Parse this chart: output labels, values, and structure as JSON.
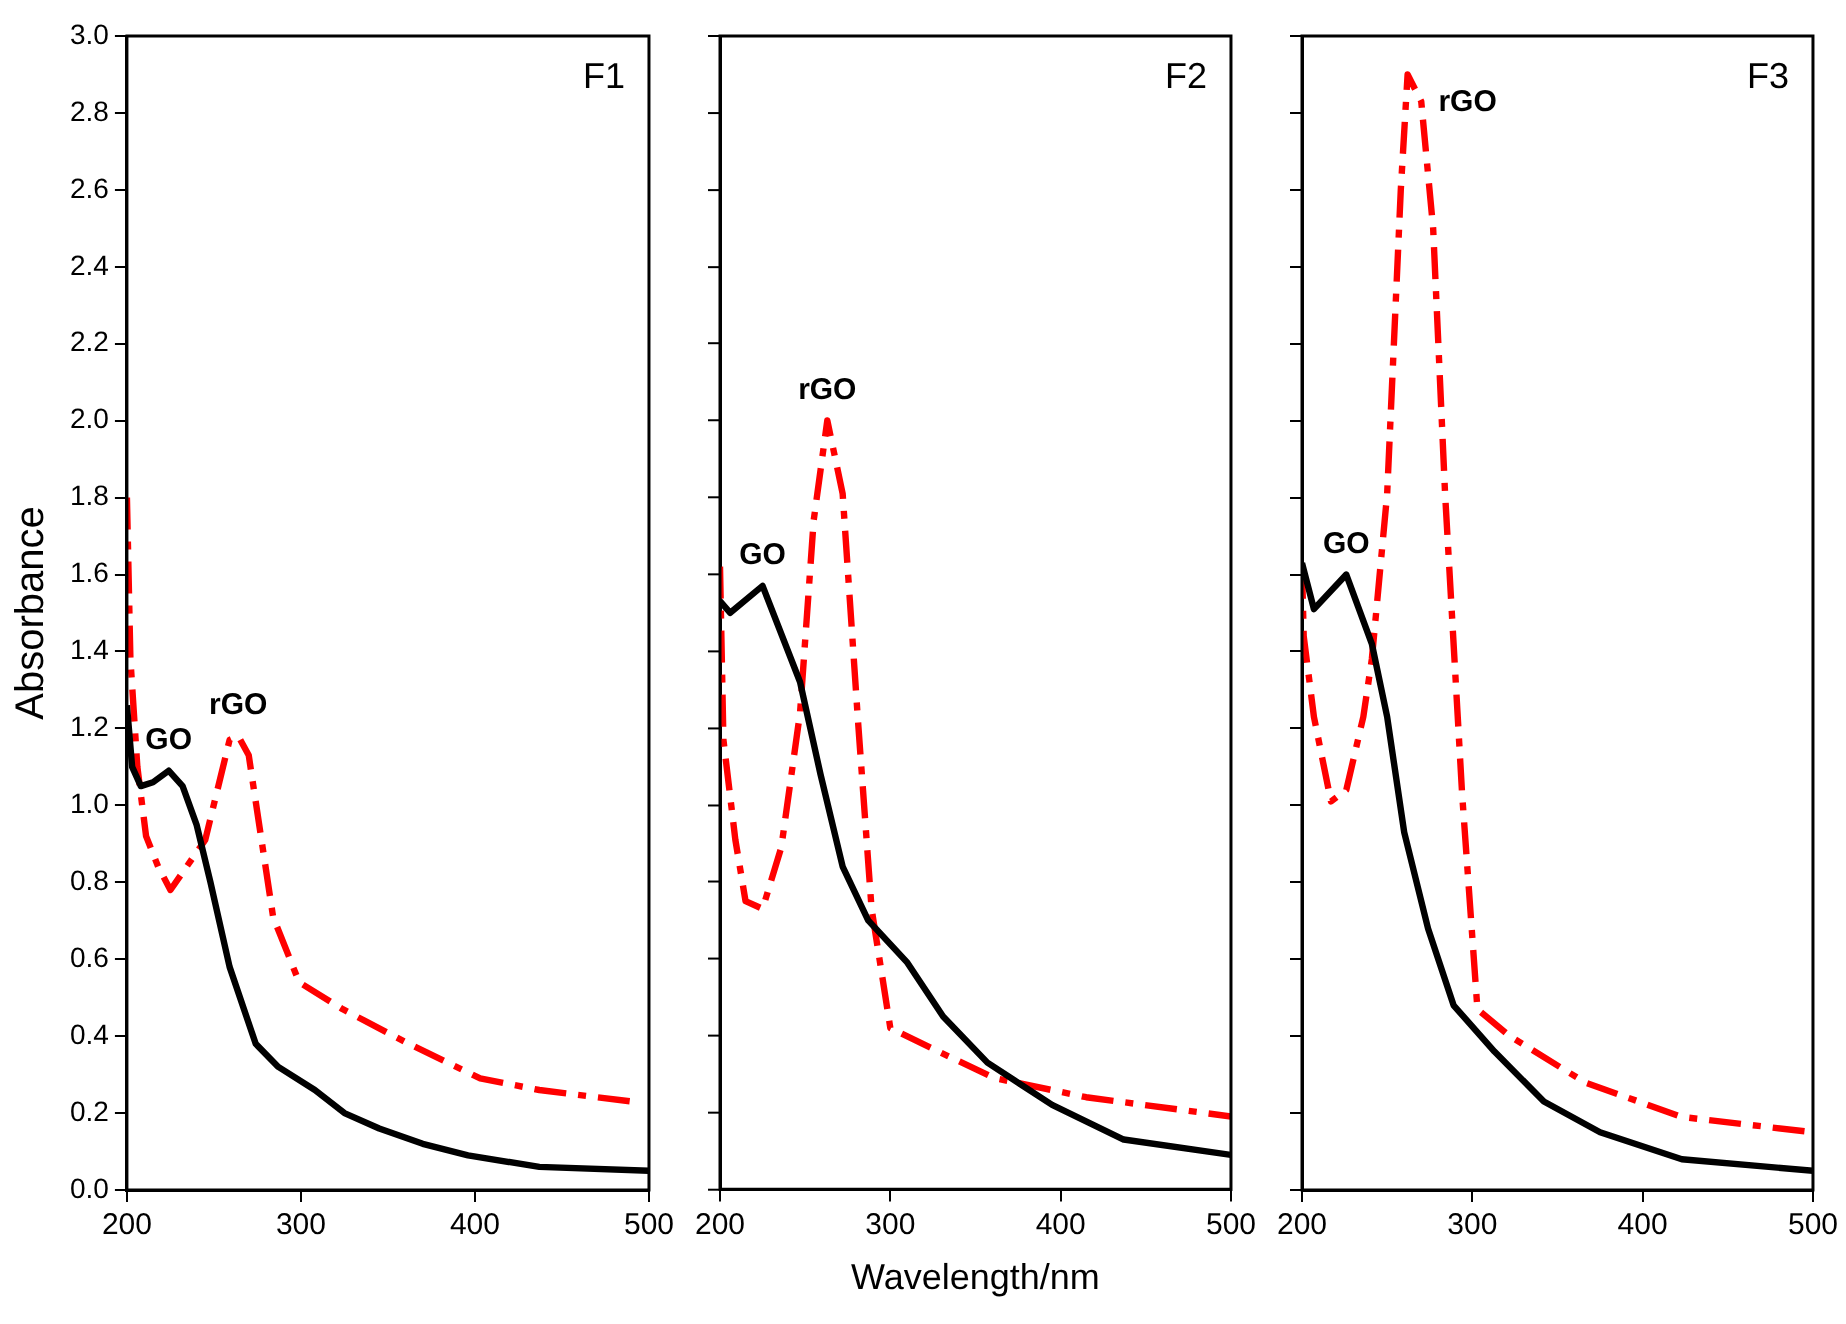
{
  "chart_data": [
    {
      "type": "line",
      "title": "F1",
      "ylabel": "Absorbance",
      "xlim": [
        200,
        500
      ],
      "xticks": [
        200,
        300,
        400,
        500
      ],
      "ylim": [
        0,
        3
      ],
      "yticks": [
        {
          "value": 0,
          "label": "0.0"
        },
        {
          "value": 0.2,
          "label": "0.2"
        },
        {
          "value": 0.4,
          "label": "0.4"
        },
        {
          "value": 0.6,
          "label": "0.6"
        },
        {
          "value": 0.8,
          "label": "0.8"
        },
        {
          "value": 1,
          "label": "1.0"
        },
        {
          "value": 1.2,
          "label": "1.2"
        },
        {
          "value": 1.4,
          "label": "1.4"
        },
        {
          "value": 1.6,
          "label": "1.6"
        },
        {
          "value": 1.8,
          "label": "1.8"
        },
        {
          "value": 2,
          "label": "2.0"
        },
        {
          "value": 2.2,
          "label": "2.2"
        },
        {
          "value": 2.4,
          "label": "2.4"
        },
        {
          "value": 2.6,
          "label": "2.6"
        },
        {
          "value": 2.8,
          "label": "2.8"
        },
        {
          "value": 3,
          "label": "3.0"
        }
      ],
      "grid": false,
      "legend": false,
      "series": [
        {
          "name": "GO",
          "color": "#000000",
          "line_style": "solid",
          "x": [
            200,
            203,
            208,
            215,
            224,
            232,
            240,
            248,
            259,
            274,
            287,
            308,
            325,
            345,
            370,
            396,
            437,
            500
          ],
          "values": [
            1.26,
            1.1,
            1.05,
            1.06,
            1.09,
            1.05,
            0.95,
            0.8,
            0.58,
            0.38,
            0.32,
            0.26,
            0.2,
            0.16,
            0.12,
            0.09,
            0.06,
            0.05
          ]
        },
        {
          "name": "rGO",
          "color": "#ff0000",
          "line_style": "dashed",
          "x": [
            200,
            202,
            206,
            211,
            218,
            225,
            245,
            259,
            264,
            270,
            284,
            299,
            324,
            362,
            403,
            437,
            490
          ],
          "values": [
            1.8,
            1.38,
            1.1,
            0.92,
            0.84,
            0.78,
            0.91,
            1.17,
            1.18,
            1.13,
            0.71,
            0.54,
            0.47,
            0.38,
            0.29,
            0.26,
            0.23
          ]
        }
      ]
    },
    {
      "type": "line",
      "title": "F2",
      "xlabel": "Wavelength/nm",
      "xlim": [
        200,
        500
      ],
      "xticks": [
        200,
        300,
        400,
        500
      ],
      "ylim": [
        0,
        3
      ],
      "yticks": [
        0,
        0.2,
        0.4,
        0.6,
        0.8,
        1,
        1.2,
        1.4,
        1.6,
        1.8,
        2,
        2.2,
        2.4,
        2.6,
        2.8,
        3
      ],
      "tick_labels": "x",
      "grid": false,
      "legend": false,
      "series": [
        {
          "name": "GO",
          "color": "#000000",
          "line_style": "solid",
          "x": [
            200,
            206,
            225,
            247,
            259,
            272,
            287,
            310,
            331,
            357,
            395,
            437,
            500
          ],
          "values": [
            1.53,
            1.5,
            1.57,
            1.32,
            1.08,
            0.84,
            0.7,
            0.59,
            0.45,
            0.33,
            0.22,
            0.13,
            0.09
          ]
        },
        {
          "name": "rGO",
          "color": "#ff0000",
          "line_style": "dashed",
          "x": [
            200,
            202,
            209,
            215,
            225,
            236,
            247,
            255,
            263,
            272,
            281,
            289,
            300,
            323,
            361,
            415,
            500
          ],
          "values": [
            1.62,
            1.17,
            0.91,
            0.75,
            0.73,
            0.89,
            1.24,
            1.74,
            2.0,
            1.81,
            1.22,
            0.73,
            0.42,
            0.37,
            0.29,
            0.24,
            0.19
          ]
        }
      ]
    },
    {
      "type": "line",
      "title": "F3",
      "xlim": [
        200,
        500
      ],
      "xticks": [
        200,
        300,
        400,
        500
      ],
      "ylim": [
        0,
        3
      ],
      "yticks": [
        0,
        0.2,
        0.4,
        0.6,
        0.8,
        1,
        1.2,
        1.4,
        1.6,
        1.8,
        2,
        2.2,
        2.4,
        2.6,
        2.8,
        3
      ],
      "tick_labels": "x",
      "grid": false,
      "legend": false,
      "series": [
        {
          "name": "GO",
          "color": "#000000",
          "line_style": "solid",
          "x": [
            200,
            207,
            226,
            241,
            250,
            260,
            274,
            289,
            313,
            342,
            375,
            423,
            500
          ],
          "values": [
            1.63,
            1.51,
            1.6,
            1.42,
            1.23,
            0.93,
            0.68,
            0.48,
            0.36,
            0.23,
            0.15,
            0.08,
            0.05
          ]
        },
        {
          "name": "rGO",
          "color": "#ff0000",
          "line_style": "dashed",
          "x": [
            200,
            201,
            207,
            217,
            226,
            236,
            241,
            250,
            258,
            262,
            270,
            277,
            284,
            294,
            303,
            322,
            366,
            423,
            500
          ],
          "values": [
            1.62,
            1.44,
            1.23,
            1.01,
            1.04,
            1.23,
            1.38,
            1.81,
            2.6,
            2.9,
            2.83,
            2.5,
            1.81,
            1.03,
            0.47,
            0.4,
            0.28,
            0.19,
            0.15
          ]
        }
      ]
    }
  ]
}
